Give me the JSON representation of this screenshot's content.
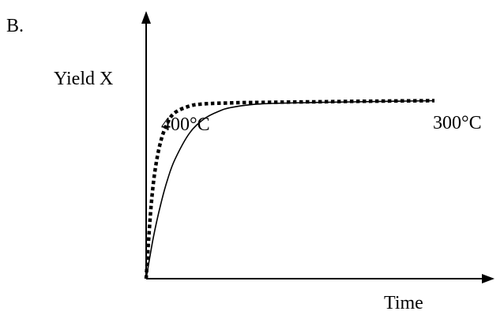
{
  "chart_data": {
    "type": "line",
    "panel_label": "B.",
    "title": "",
    "xlabel": "Time",
    "ylabel": "Yield X",
    "xlim": [
      0,
      10
    ],
    "ylim": [
      0,
      10
    ],
    "grid": false,
    "axis_ticks": false,
    "series": [
      {
        "name": "400°C",
        "style": "dotted",
        "color": "#000000",
        "x": [
          0,
          0.15,
          0.3,
          0.5,
          0.75,
          1,
          1.5,
          2,
          3,
          4,
          6,
          8,
          10
        ],
        "y": [
          0,
          3.0,
          4.9,
          6.3,
          7.2,
          7.65,
          7.95,
          8.05,
          8.1,
          8.12,
          8.15,
          8.18,
          8.2
        ]
      },
      {
        "name": "300°C",
        "style": "solid",
        "color": "#000000",
        "x": [
          0,
          0.25,
          0.5,
          0.75,
          1,
          1.5,
          2,
          2.5,
          3,
          4,
          6,
          8,
          10
        ],
        "y": [
          0,
          1.9,
          3.4,
          4.6,
          5.5,
          6.7,
          7.35,
          7.7,
          7.9,
          8.05,
          8.12,
          8.16,
          8.2
        ]
      }
    ]
  }
}
